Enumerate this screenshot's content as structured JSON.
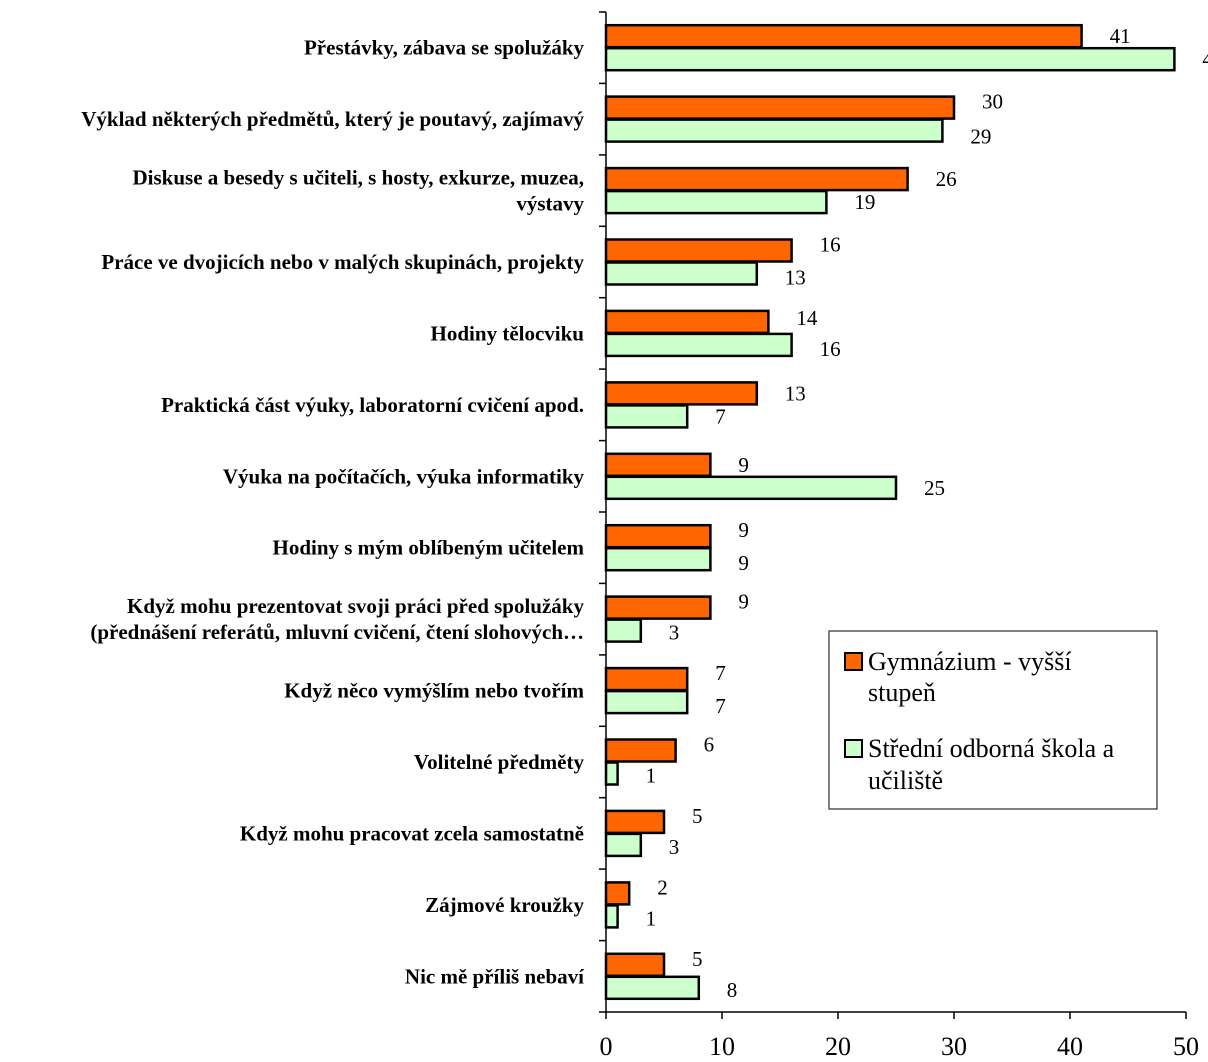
{
  "chart_data": {
    "type": "bar",
    "orientation": "horizontal",
    "categories": [
      "Přestávky, zábava se spolužáky",
      "Výklad některých předmětů, který je poutavý, zajímavý",
      "Diskuse a besedy s učiteli, s hosty, exkurze, muzea, výstavy",
      "Práce ve dvojicích nebo v malých skupinách, projekty",
      "Hodiny tělocviku",
      "Praktická část výuky, laboratorní cvičení apod.",
      "Výuka na počítačích, výuka informatiky",
      "Hodiny s mým oblíbeným učitelem",
      "Když mohu prezentovat svoji práci před spolužáky (přednášení referátů, mluvní cvičení, čtení slohových…",
      "Když něco vymýšlím nebo tvořím",
      "Volitelné předměty",
      "Když mohu pracovat zcela samostatně",
      "Zájmové kroužky",
      "Nic mě příliš nebaví"
    ],
    "category_lines": [
      [
        "Přestávky, zábava se spolužáky"
      ],
      [
        "Výklad některých předmětů, který je poutavý, zajímavý"
      ],
      [
        "Diskuse a besedy s učiteli, s hosty, exkurze, muzea,",
        "výstavy"
      ],
      [
        "Práce ve dvojicích nebo v malých skupinách, projekty"
      ],
      [
        "Hodiny tělocviku"
      ],
      [
        "Praktická část výuky, laboratorní cvičení apod."
      ],
      [
        "Výuka na počítačích, výuka informatiky"
      ],
      [
        "Hodiny s mým oblíbeným učitelem"
      ],
      [
        "Když mohu prezentovat svoji práci před spolužáky",
        "(přednášení referátů, mluvní cvičení, čtení slohových…"
      ],
      [
        "Když něco vymýšlím nebo tvořím"
      ],
      [
        "Volitelné předměty"
      ],
      [
        "Když mohu pracovat zcela samostatně"
      ],
      [
        "Zájmové kroužky"
      ],
      [
        "Nic mě příliš nebaví"
      ]
    ],
    "series": [
      {
        "name": "Gymnázium - vyšší stupeň",
        "legend_lines": [
          "Gymnázium - vyšší",
          "stupeň"
        ],
        "color": "#ff6600",
        "values": [
          41,
          30,
          26,
          16,
          14,
          13,
          9,
          9,
          9,
          7,
          6,
          5,
          2,
          5
        ]
      },
      {
        "name": "Střední odborná škola a učiliště",
        "legend_lines": [
          "Střední odborná škola a",
          "učiliště"
        ],
        "color": "#ccffcc",
        "values": [
          49,
          29,
          19,
          13,
          16,
          7,
          25,
          9,
          3,
          7,
          1,
          3,
          1,
          8
        ]
      }
    ],
    "xlim": [
      0,
      50
    ],
    "xticks": [
      0,
      10,
      20,
      30,
      40,
      50
    ],
    "title": "",
    "xlabel": "",
    "ylabel": "",
    "grid": false,
    "legend_position": "right-center",
    "bar_outline_color": "#000000"
  }
}
